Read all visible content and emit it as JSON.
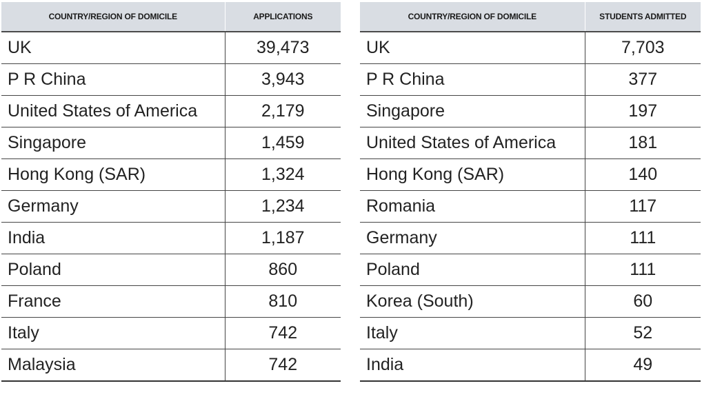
{
  "chart_data": [
    {
      "type": "table",
      "columns": [
        "COUNTRY/REGION OF DOMICILE",
        "APPLICATIONS"
      ],
      "rows": [
        [
          "UK",
          "39,473"
        ],
        [
          "P R China",
          "3,943"
        ],
        [
          "United States of America",
          "2,179"
        ],
        [
          "Singapore",
          "1,459"
        ],
        [
          "Hong Kong (SAR)",
          "1,324"
        ],
        [
          "Germany",
          "1,234"
        ],
        [
          "India",
          "1,187"
        ],
        [
          "Poland",
          "860"
        ],
        [
          "France",
          "810"
        ],
        [
          "Italy",
          "742"
        ],
        [
          "Malaysia",
          "742"
        ]
      ]
    },
    {
      "type": "table",
      "columns": [
        "COUNTRY/REGION OF DOMICILE",
        "STUDENTS ADMITTED"
      ],
      "rows": [
        [
          "UK",
          "7,703"
        ],
        [
          "P R China",
          "377"
        ],
        [
          "Singapore",
          "197"
        ],
        [
          "United States of America",
          "181"
        ],
        [
          "Hong Kong (SAR)",
          "140"
        ],
        [
          "Romania",
          "117"
        ],
        [
          "Germany",
          "111"
        ],
        [
          "Poland",
          "111"
        ],
        [
          "Korea (South)",
          "60"
        ],
        [
          "Italy",
          "52"
        ],
        [
          "India",
          "49"
        ]
      ]
    }
  ]
}
